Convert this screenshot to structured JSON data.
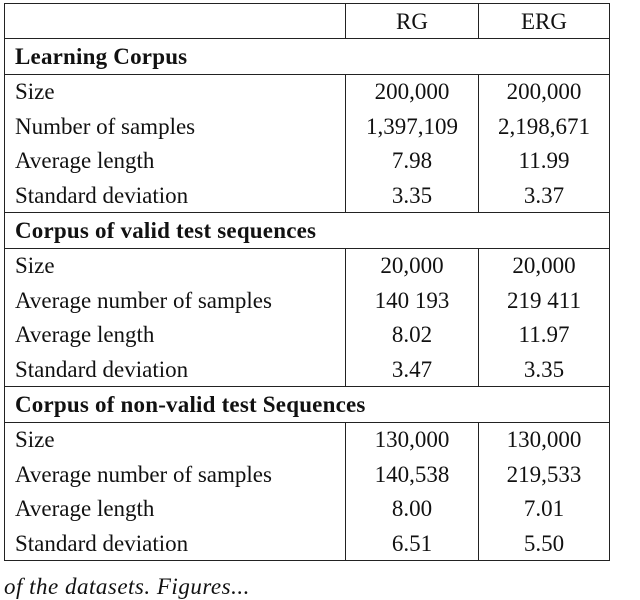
{
  "table": {
    "columns": [
      "",
      "RG",
      "ERG"
    ],
    "sections": [
      {
        "title": "Learning Corpus",
        "rows": [
          {
            "label": "Size",
            "rg": "200,000",
            "erg": "200,000"
          },
          {
            "label": "Number of samples",
            "rg": "1,397,109",
            "erg": "2,198,671"
          },
          {
            "label": "Average length",
            "rg": "7.98",
            "erg": "11.99"
          },
          {
            "label": "Standard deviation",
            "rg": "3.35",
            "erg": "3.37"
          }
        ]
      },
      {
        "title": "Corpus of valid test sequences",
        "rows": [
          {
            "label": "Size",
            "rg": "20,000",
            "erg": "20,000"
          },
          {
            "label": "Average number of samples",
            "rg": "140 193",
            "erg": "219 411"
          },
          {
            "label": "Average length",
            "rg": "8.02",
            "erg": "11.97"
          },
          {
            "label": "Standard deviation",
            "rg": "3.47",
            "erg": "3.35"
          }
        ]
      },
      {
        "title": "Corpus of non-valid test Sequences",
        "rows": [
          {
            "label": "Size",
            "rg": "130,000",
            "erg": "130,000"
          },
          {
            "label": "Average number of samples",
            "rg": "140,538",
            "erg": "219,533"
          },
          {
            "label": "Average length",
            "rg": "8.00",
            "erg": "7.01"
          },
          {
            "label": "Standard deviation",
            "rg": "6.51",
            "erg": "5.50"
          }
        ]
      }
    ]
  },
  "caption_fragment": "of the datasets. Figures..."
}
